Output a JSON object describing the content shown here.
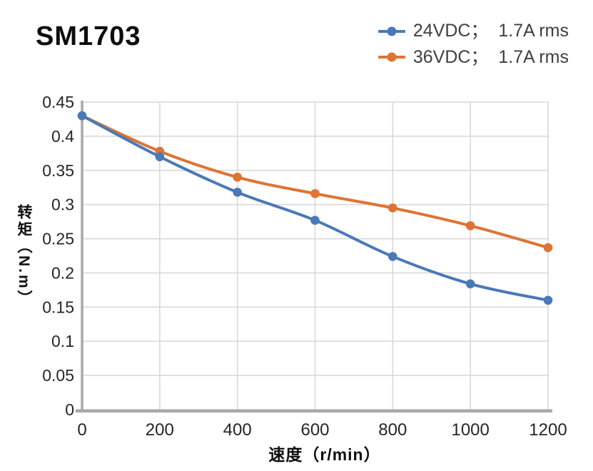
{
  "header": {
    "title": "SM1703"
  },
  "legend": {
    "position": "top-right",
    "items": [
      {
        "label": "24VDC；  1.7A rms"
      },
      {
        "label": "36VDC；  1.7A rms"
      }
    ]
  },
  "chart_data": {
    "type": "line",
    "title": "SM1703",
    "xlabel": "速度（r/min）",
    "ylabel": "转矩（N.m）",
    "x": [
      0,
      200,
      400,
      600,
      800,
      1000,
      1200
    ],
    "series": [
      {
        "name": "24VDC；1.7A rms",
        "color": "#4A79B8",
        "values": [
          0.43,
          0.37,
          0.318,
          0.277,
          0.224,
          0.184,
          0.16
        ]
      },
      {
        "name": "36VDC；1.7A rms",
        "color": "#DE7434",
        "values": [
          0.43,
          0.378,
          0.34,
          0.316,
          0.295,
          0.269,
          0.237
        ]
      }
    ],
    "xlim": [
      0,
      1200
    ],
    "ylim": [
      0,
      0.45
    ],
    "xticks": [
      "0",
      "200",
      "400",
      "600",
      "800",
      "1000",
      "1200"
    ],
    "yticks": [
      "0",
      "0.05",
      "0.1",
      "0.15",
      "0.2",
      "0.25",
      "0.3",
      "0.35",
      "0.4",
      "0.45"
    ],
    "grid": true,
    "smooth": true,
    "legend_position": "top-right"
  },
  "style": {
    "grid_color": "#D9D9D9",
    "axis_color": "#A8A8A8",
    "tick_color": "#262626",
    "legend_text_color": "#3F3F3F"
  }
}
